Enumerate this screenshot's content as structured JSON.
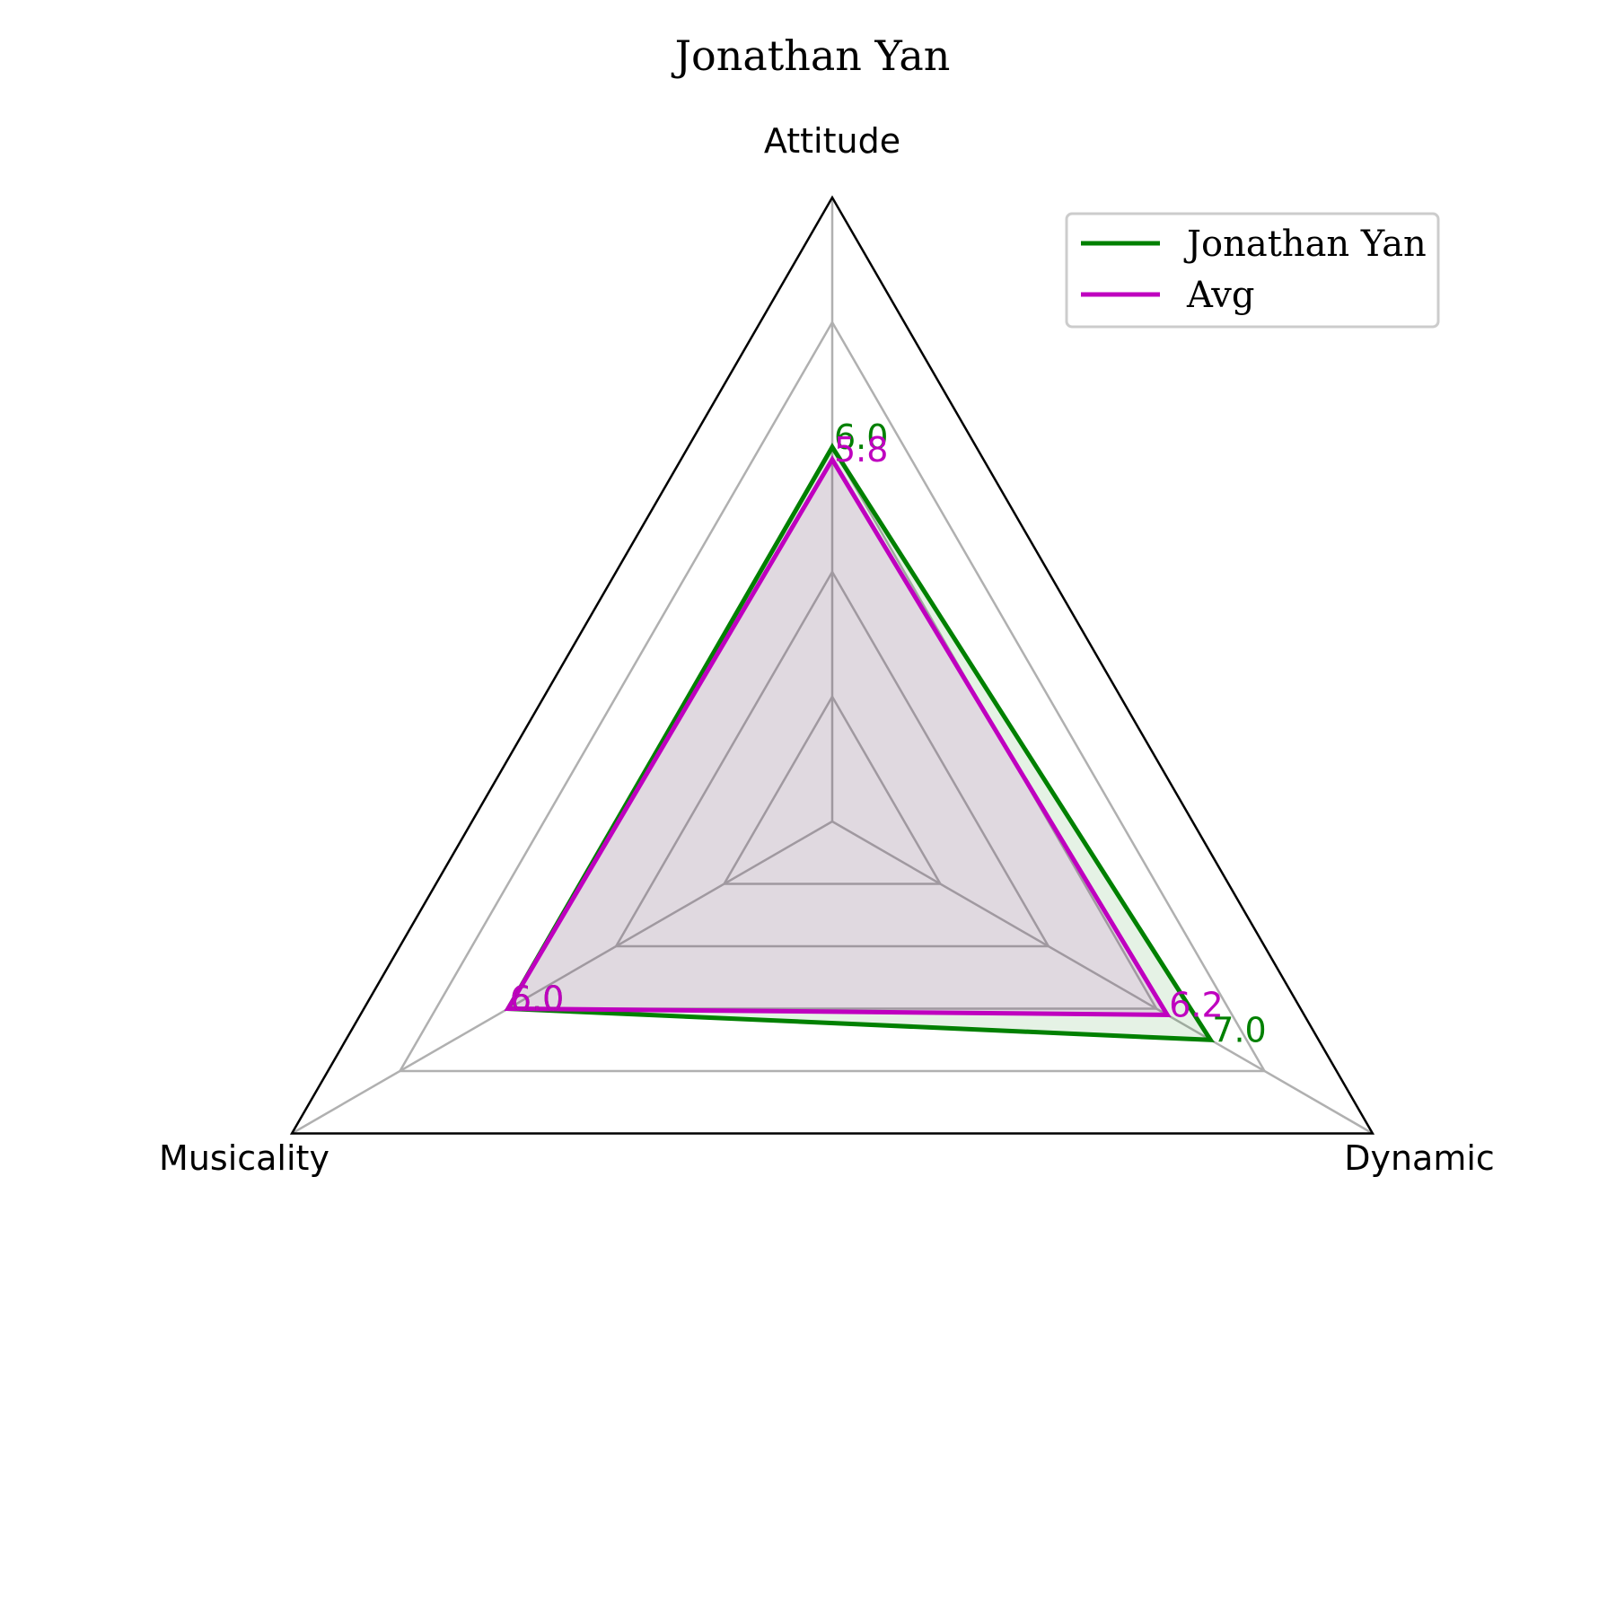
{
  "chart_data": {
    "type": "radar",
    "title": "Jonathan Yan",
    "axes": [
      "Attitude",
      "Dynamic",
      "Musicality"
    ],
    "rmax": 10,
    "grid_levels": [
      2,
      4,
      6,
      8
    ],
    "series": [
      {
        "name": "Jonathan Yan",
        "values": [
          6.0,
          7.0,
          6.0
        ],
        "labels": [
          "6.0",
          "7.0",
          "6.0"
        ],
        "color": "#008000"
      },
      {
        "name": "Avg",
        "values": [
          5.8,
          6.2,
          6.0
        ],
        "labels": [
          "5.8",
          "6.2",
          "6.0"
        ],
        "color": "#bf00bf"
      }
    ],
    "grid": true,
    "legend_position": "top-right"
  }
}
